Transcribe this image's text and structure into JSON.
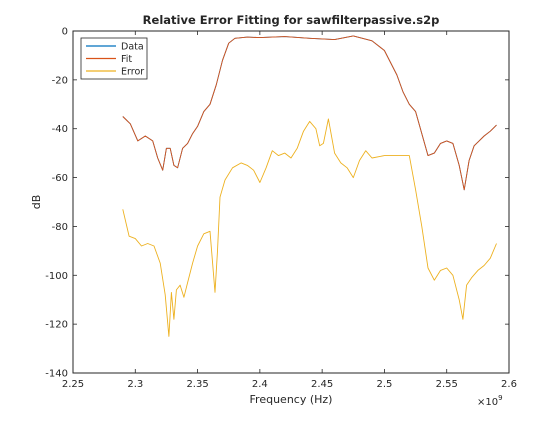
{
  "chart_data": {
    "type": "line",
    "title": "Relative Error Fitting for sawfilterpassive.s2p",
    "xlabel": "Frequency (Hz)",
    "ylabel": "dB",
    "x_exponent_label": "×10",
    "x_exponent_power": "9",
    "xlim": [
      2.25,
      2.6
    ],
    "ylim": [
      -140,
      0
    ],
    "xticks": [
      2.25,
      2.3,
      2.35,
      2.4,
      2.45,
      2.5,
      2.55,
      2.6
    ],
    "xtick_labels": [
      "2.25",
      "2.3",
      "2.35",
      "2.4",
      "2.45",
      "2.5",
      "2.55",
      "2.6"
    ],
    "yticks": [
      -140,
      -120,
      -100,
      -80,
      -60,
      -40,
      -20,
      0
    ],
    "ytick_labels": [
      "-140",
      "-120",
      "-100",
      "-80",
      "-60",
      "-40",
      "-20",
      "0"
    ],
    "grid": false,
    "legend_position": "top-left",
    "series": [
      {
        "name": "Data",
        "color": "#0072BD",
        "x": [
          2.29,
          2.296,
          2.302,
          2.308,
          2.314,
          2.318,
          2.322,
          2.325,
          2.328,
          2.331,
          2.334,
          2.338,
          2.342,
          2.346,
          2.35,
          2.355,
          2.36,
          2.365,
          2.37,
          2.375,
          2.38,
          2.39,
          2.4,
          2.42,
          2.44,
          2.46,
          2.475,
          2.49,
          2.5,
          2.51,
          2.515,
          2.52,
          2.525,
          2.53,
          2.535,
          2.54,
          2.545,
          2.55,
          2.555,
          2.56,
          2.564,
          2.568,
          2.572,
          2.576,
          2.58,
          2.585,
          2.59
        ],
        "y": [
          -35,
          -38,
          -45,
          -43,
          -45,
          -52,
          -57,
          -48,
          -48,
          -55,
          -56,
          -48,
          -46,
          -42,
          -39,
          -33,
          -30,
          -22,
          -12,
          -5,
          -3,
          -2.5,
          -2.7,
          -2.3,
          -3,
          -3.5,
          -2,
          -4,
          -8,
          -18,
          -25,
          -30,
          -33,
          -42,
          -51,
          -50,
          -46,
          -45,
          -46,
          -55,
          -65,
          -53,
          -47,
          -45,
          -43,
          -41,
          -38.5
        ]
      },
      {
        "name": "Fit",
        "color": "#D95319",
        "x": [
          2.29,
          2.296,
          2.302,
          2.308,
          2.314,
          2.318,
          2.322,
          2.325,
          2.328,
          2.331,
          2.334,
          2.338,
          2.342,
          2.346,
          2.35,
          2.355,
          2.36,
          2.365,
          2.37,
          2.375,
          2.38,
          2.39,
          2.4,
          2.42,
          2.44,
          2.46,
          2.475,
          2.49,
          2.5,
          2.51,
          2.515,
          2.52,
          2.525,
          2.53,
          2.535,
          2.54,
          2.545,
          2.55,
          2.555,
          2.56,
          2.564,
          2.568,
          2.572,
          2.576,
          2.58,
          2.585,
          2.59
        ],
        "y": [
          -35,
          -38,
          -45,
          -43,
          -45,
          -52,
          -57,
          -48,
          -48,
          -55,
          -56,
          -48,
          -46,
          -42,
          -39,
          -33,
          -30,
          -22,
          -12,
          -5,
          -3,
          -2.5,
          -2.7,
          -2.3,
          -3,
          -3.5,
          -2,
          -4,
          -8,
          -18,
          -25,
          -30,
          -33,
          -42,
          -51,
          -50,
          -46,
          -45,
          -46,
          -55,
          -65,
          -53,
          -47,
          -45,
          -43,
          -41,
          -38.5
        ]
      },
      {
        "name": "Error",
        "color": "#EDB120",
        "x": [
          2.29,
          2.295,
          2.3,
          2.305,
          2.31,
          2.315,
          2.32,
          2.324,
          2.327,
          2.329,
          2.331,
          2.333,
          2.336,
          2.339,
          2.342,
          2.346,
          2.35,
          2.355,
          2.36,
          2.364,
          2.366,
          2.368,
          2.372,
          2.378,
          2.385,
          2.39,
          2.395,
          2.4,
          2.405,
          2.41,
          2.415,
          2.42,
          2.425,
          2.43,
          2.435,
          2.44,
          2.445,
          2.448,
          2.451,
          2.455,
          2.46,
          2.465,
          2.47,
          2.475,
          2.48,
          2.485,
          2.49,
          2.5,
          2.51,
          2.52,
          2.525,
          2.53,
          2.535,
          2.54,
          2.545,
          2.55,
          2.555,
          2.56,
          2.563,
          2.566,
          2.57,
          2.575,
          2.58,
          2.585,
          2.59
        ],
        "y": [
          -73,
          -84,
          -85,
          -88,
          -87,
          -88,
          -95,
          -108,
          -125,
          -107,
          -118,
          -106,
          -104,
          -109,
          -103,
          -95,
          -88,
          -83,
          -82,
          -107,
          -90,
          -68,
          -61,
          -56,
          -54,
          -55,
          -57,
          -62,
          -56,
          -49,
          -51,
          -50,
          -52,
          -48,
          -41,
          -37,
          -40,
          -47,
          -46,
          -36,
          -50,
          -54,
          -56,
          -60,
          -53,
          -49,
          -52,
          -51,
          -51,
          -51,
          -65,
          -80,
          -97,
          -102,
          -98,
          -97,
          -100,
          -110,
          -118,
          -104,
          -101,
          -98,
          -96,
          -93,
          -87
        ]
      }
    ]
  }
}
